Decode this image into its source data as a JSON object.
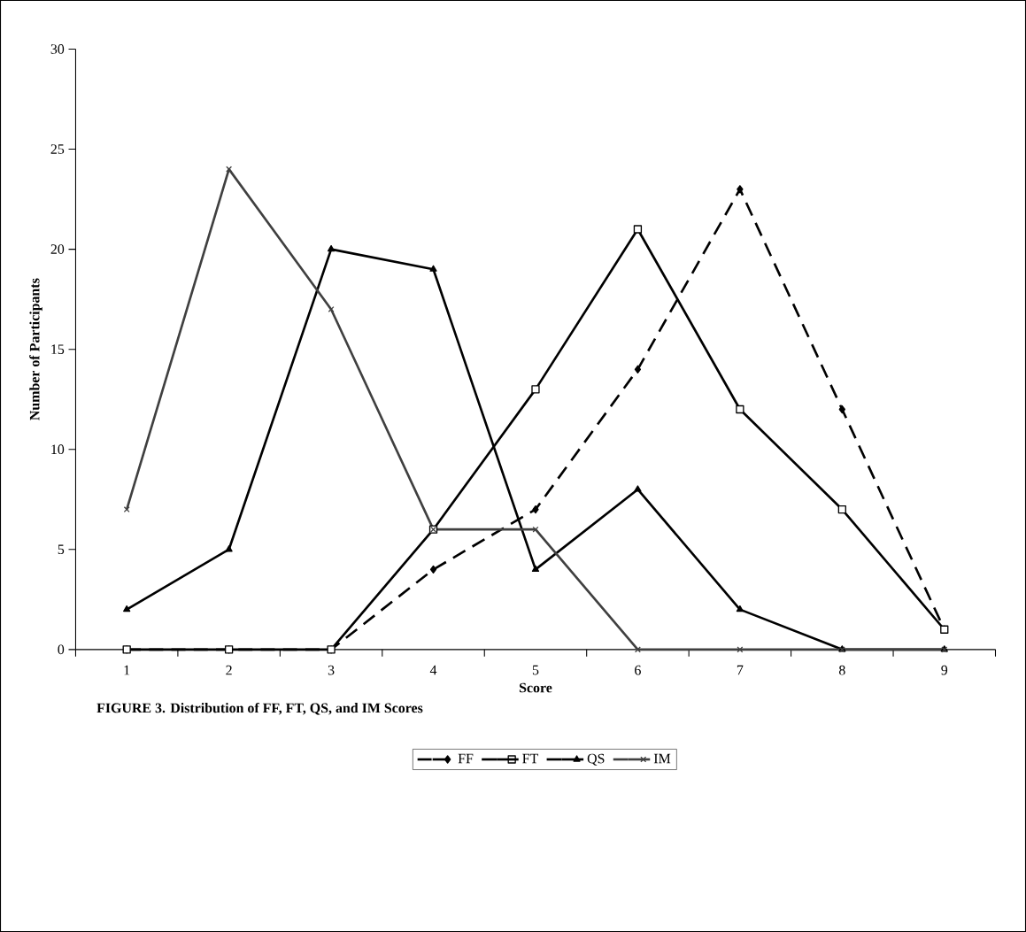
{
  "chart_data": {
    "type": "line",
    "title": "FIGURE 3. Distribution of FF, FT, QS, and IM Scores",
    "xlabel": "Score",
    "ylabel": "Number of Participants",
    "categories": [
      "1",
      "2",
      "3",
      "4",
      "5",
      "6",
      "7",
      "8",
      "9"
    ],
    "series": [
      {
        "name": "FF",
        "color": "#000000",
        "marker": "diamond",
        "line_style": "dashed",
        "values": [
          0,
          0,
          0,
          4,
          7,
          14,
          23,
          12,
          1
        ]
      },
      {
        "name": "FT",
        "color": "#000000",
        "marker": "square",
        "line_style": "solid",
        "values": [
          0,
          0,
          0,
          6,
          13,
          21,
          12,
          7,
          1
        ]
      },
      {
        "name": "QS",
        "color": "#000000",
        "marker": "triangle",
        "line_style": "solid",
        "values": [
          2,
          5,
          20,
          19,
          4,
          8,
          2,
          0,
          0
        ]
      },
      {
        "name": "IM",
        "color": "#404040",
        "marker": "cross",
        "line_style": "solid",
        "values": [
          7,
          24,
          17,
          6,
          6,
          0,
          0,
          0,
          0
        ]
      }
    ],
    "ylim": [
      0,
      30
    ],
    "yticks": [
      0,
      5,
      10,
      15,
      20,
      25,
      30
    ],
    "legend": "bottom"
  }
}
